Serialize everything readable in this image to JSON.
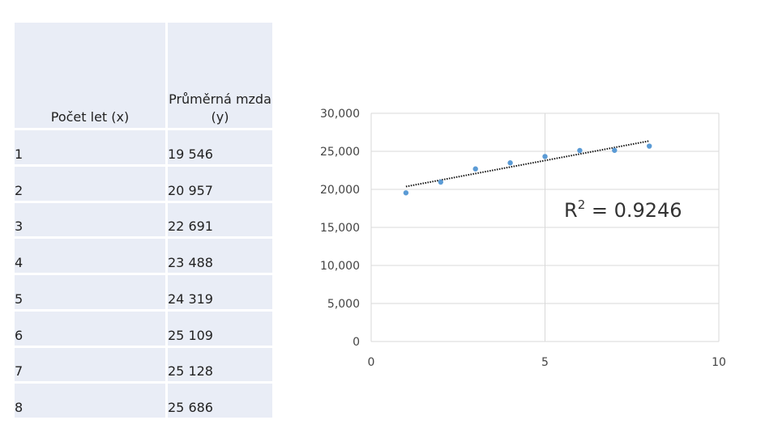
{
  "table": {
    "headers": [
      "Počet let (x)",
      "Průměrná mzda (y)"
    ],
    "rows": [
      {
        "x": "1",
        "y": "19 546"
      },
      {
        "x": "2",
        "y": "20 957"
      },
      {
        "x": "3",
        "y": "22 691"
      },
      {
        "x": "4",
        "y": "23 488"
      },
      {
        "x": "5",
        "y": "24 319"
      },
      {
        "x": "6",
        "y": "25 109"
      },
      {
        "x": "7",
        "y": "25 128"
      },
      {
        "x": "8",
        "y": "25 686"
      }
    ]
  },
  "chart_data": {
    "type": "scatter",
    "x": [
      1,
      2,
      3,
      4,
      5,
      6,
      7,
      8
    ],
    "y": [
      19546,
      20957,
      22691,
      23488,
      24319,
      25109,
      25128,
      25686
    ],
    "xlim": [
      0,
      10
    ],
    "ylim": [
      0,
      30000
    ],
    "x_ticks": [
      0,
      5,
      10
    ],
    "x_tick_labels": [
      "0",
      "5",
      "10"
    ],
    "y_ticks": [
      0,
      5000,
      10000,
      15000,
      20000,
      25000,
      30000
    ],
    "y_tick_labels": [
      "0",
      "5,000",
      "10,000",
      "15,000",
      "20,000",
      "25,000",
      "30,000"
    ],
    "grid": true,
    "trendline": {
      "type": "linear",
      "style": "dotted",
      "color": "#111111"
    },
    "annotation": {
      "r2_prefix": "R",
      "r2_exponent": "2",
      "r2_value": " = 0.9246"
    },
    "colors": {
      "points": "#5b9bd5",
      "grid": "#d9d9d9"
    }
  }
}
